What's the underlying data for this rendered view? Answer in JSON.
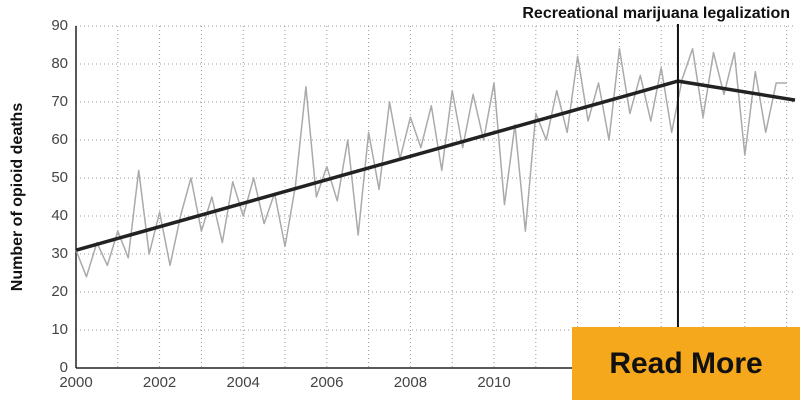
{
  "chart_data": {
    "type": "line",
    "y_label": "Number of opioid deaths",
    "annotation": {
      "text": "Recreational marijuana legalization",
      "x": 2014.4
    },
    "x": [
      2000,
      2000.25,
      2000.5,
      2000.75,
      2001,
      2001.25,
      2001.5,
      2001.75,
      2002,
      2002.25,
      2002.5,
      2002.75,
      2003,
      2003.25,
      2003.5,
      2003.75,
      2004,
      2004.25,
      2004.5,
      2004.75,
      2005,
      2005.25,
      2005.5,
      2005.75,
      2006,
      2006.25,
      2006.5,
      2006.75,
      2007,
      2007.25,
      2007.5,
      2007.75,
      2008,
      2008.25,
      2008.5,
      2008.75,
      2009,
      2009.25,
      2009.5,
      2009.75,
      2010,
      2010.25,
      2010.5,
      2010.75,
      2011,
      2011.25,
      2011.5,
      2011.75,
      2012,
      2012.25,
      2012.5,
      2012.75,
      2013,
      2013.25,
      2013.5,
      2013.75,
      2014,
      2014.25,
      2014.5,
      2014.75,
      2015,
      2015.25,
      2015.5,
      2015.75,
      2016,
      2016.25,
      2016.5,
      2016.75,
      2017
    ],
    "series": [
      {
        "color": "#aaaaaa",
        "values": [
          31,
          24,
          33,
          27,
          36,
          29,
          52,
          30,
          41,
          27,
          40,
          50,
          36,
          45,
          33,
          49,
          40,
          50,
          38,
          46,
          32,
          48,
          74,
          45,
          53,
          44,
          60,
          35,
          62,
          47,
          70,
          55,
          66,
          58,
          69,
          52,
          73,
          58,
          72,
          60,
          75,
          43,
          64,
          36,
          67,
          60,
          73,
          62,
          82,
          65,
          75,
          60,
          84,
          67,
          77,
          65,
          79,
          62,
          76,
          84,
          66,
          83,
          72,
          83,
          56,
          78,
          62,
          75,
          75
        ]
      }
    ],
    "trend_lines": [
      {
        "color": "#222222",
        "x": [
          2000,
          2014.4
        ],
        "values": [
          31,
          75.5
        ]
      },
      {
        "color": "#222222",
        "x": [
          2014.4,
          2017.2
        ],
        "values": [
          75.5,
          70.5
        ]
      }
    ],
    "xlim": [
      2000,
      2017.2
    ],
    "xticks": [
      2000,
      2002,
      2004,
      2006,
      2008,
      2010
    ],
    "xminor": [
      2001,
      2003,
      2005,
      2007,
      2009,
      2011,
      2012,
      2013,
      2014,
      2015,
      2016,
      2017
    ],
    "ylim": [
      0,
      90
    ],
    "yticks": [
      0,
      10,
      20,
      30,
      40,
      50,
      60,
      70,
      80,
      90
    ],
    "grid": true
  },
  "button": {
    "label": "Read More"
  }
}
